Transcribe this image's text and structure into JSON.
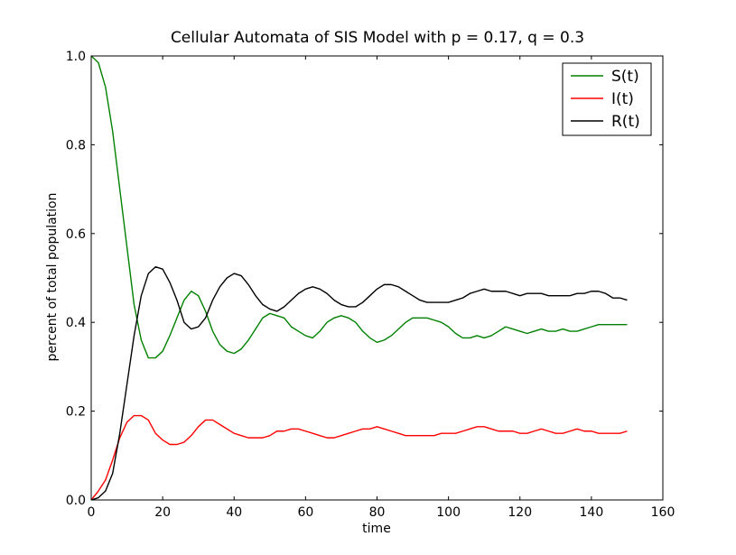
{
  "chart_data": {
    "type": "line",
    "title": "Cellular Automata of SIS Model with p = 0.17, q = 0.3",
    "xlabel": "time",
    "ylabel": "percent of total population",
    "xlim": [
      0,
      160
    ],
    "ylim": [
      0.0,
      1.0
    ],
    "xticks": [
      0,
      20,
      40,
      60,
      80,
      100,
      120,
      140,
      160
    ],
    "xtick_labels": [
      "0",
      "20",
      "40",
      "60",
      "80",
      "100",
      "120",
      "140",
      "160"
    ],
    "yticks": [
      0.0,
      0.2,
      0.4,
      0.6,
      0.8,
      1.0
    ],
    "ytick_labels": [
      "0.0",
      "0.2",
      "0.4",
      "0.6",
      "0.8",
      "1.0"
    ],
    "grid": false,
    "legend": {
      "location": "top-right",
      "entries": [
        "S(t)",
        "I(t)",
        "R(t)"
      ]
    },
    "series": [
      {
        "name": "S(t)",
        "color": "#008000",
        "x": [
          0,
          2,
          4,
          6,
          8,
          10,
          12,
          14,
          16,
          18,
          20,
          22,
          24,
          26,
          28,
          30,
          32,
          34,
          36,
          38,
          40,
          42,
          44,
          46,
          48,
          50,
          52,
          54,
          56,
          58,
          60,
          62,
          64,
          66,
          68,
          70,
          72,
          74,
          76,
          78,
          80,
          82,
          84,
          86,
          88,
          90,
          92,
          94,
          96,
          98,
          100,
          102,
          104,
          106,
          108,
          110,
          112,
          114,
          116,
          118,
          120,
          122,
          124,
          126,
          128,
          130,
          132,
          134,
          136,
          138,
          140,
          142,
          144,
          146,
          148,
          150
        ],
        "y": [
          1.0,
          0.985,
          0.93,
          0.83,
          0.7,
          0.57,
          0.44,
          0.36,
          0.32,
          0.32,
          0.335,
          0.37,
          0.41,
          0.45,
          0.47,
          0.46,
          0.425,
          0.38,
          0.35,
          0.335,
          0.33,
          0.34,
          0.36,
          0.385,
          0.41,
          0.42,
          0.415,
          0.41,
          0.39,
          0.38,
          0.37,
          0.365,
          0.38,
          0.4,
          0.41,
          0.415,
          0.41,
          0.4,
          0.38,
          0.365,
          0.355,
          0.36,
          0.37,
          0.385,
          0.4,
          0.41,
          0.41,
          0.41,
          0.405,
          0.4,
          0.39,
          0.375,
          0.365,
          0.365,
          0.37,
          0.365,
          0.37,
          0.38,
          0.39,
          0.385,
          0.38,
          0.375,
          0.38,
          0.385,
          0.38,
          0.38,
          0.385,
          0.38,
          0.38,
          0.385,
          0.39,
          0.395,
          0.395,
          0.395,
          0.395,
          0.395
        ]
      },
      {
        "name": "I(t)",
        "color": "#ff0000",
        "x": [
          0,
          2,
          4,
          6,
          8,
          10,
          12,
          14,
          16,
          18,
          20,
          22,
          24,
          26,
          28,
          30,
          32,
          34,
          36,
          38,
          40,
          42,
          44,
          46,
          48,
          50,
          52,
          54,
          56,
          58,
          60,
          62,
          64,
          66,
          68,
          70,
          72,
          74,
          76,
          78,
          80,
          82,
          84,
          86,
          88,
          90,
          92,
          94,
          96,
          98,
          100,
          102,
          104,
          106,
          108,
          110,
          112,
          114,
          116,
          118,
          120,
          122,
          124,
          126,
          128,
          130,
          132,
          134,
          136,
          138,
          140,
          142,
          144,
          146,
          148,
          150
        ],
        "y": [
          0.0,
          0.02,
          0.045,
          0.09,
          0.14,
          0.175,
          0.19,
          0.19,
          0.18,
          0.15,
          0.135,
          0.125,
          0.125,
          0.13,
          0.145,
          0.165,
          0.18,
          0.18,
          0.17,
          0.16,
          0.15,
          0.145,
          0.14,
          0.14,
          0.14,
          0.145,
          0.155,
          0.155,
          0.16,
          0.16,
          0.155,
          0.15,
          0.145,
          0.14,
          0.14,
          0.145,
          0.15,
          0.155,
          0.16,
          0.16,
          0.165,
          0.16,
          0.155,
          0.15,
          0.145,
          0.145,
          0.145,
          0.145,
          0.145,
          0.15,
          0.15,
          0.15,
          0.155,
          0.16,
          0.165,
          0.165,
          0.16,
          0.155,
          0.155,
          0.155,
          0.15,
          0.15,
          0.155,
          0.16,
          0.155,
          0.15,
          0.15,
          0.155,
          0.16,
          0.155,
          0.155,
          0.15,
          0.15,
          0.15,
          0.15,
          0.155
        ]
      },
      {
        "name": "R(t)",
        "color": "#000000",
        "x": [
          0,
          2,
          4,
          6,
          8,
          10,
          12,
          14,
          16,
          18,
          20,
          22,
          24,
          26,
          28,
          30,
          32,
          34,
          36,
          38,
          40,
          42,
          44,
          46,
          48,
          50,
          52,
          54,
          56,
          58,
          60,
          62,
          64,
          66,
          68,
          70,
          72,
          74,
          76,
          78,
          80,
          82,
          84,
          86,
          88,
          90,
          92,
          94,
          96,
          98,
          100,
          102,
          104,
          106,
          108,
          110,
          112,
          114,
          116,
          118,
          120,
          122,
          124,
          126,
          128,
          130,
          132,
          134,
          136,
          138,
          140,
          142,
          144,
          146,
          148,
          150
        ],
        "y": [
          0.0,
          0.005,
          0.02,
          0.06,
          0.15,
          0.26,
          0.37,
          0.46,
          0.51,
          0.525,
          0.52,
          0.49,
          0.45,
          0.4,
          0.385,
          0.39,
          0.41,
          0.45,
          0.48,
          0.5,
          0.51,
          0.505,
          0.485,
          0.46,
          0.44,
          0.43,
          0.425,
          0.435,
          0.45,
          0.465,
          0.475,
          0.48,
          0.475,
          0.465,
          0.45,
          0.44,
          0.435,
          0.435,
          0.445,
          0.46,
          0.475,
          0.485,
          0.485,
          0.48,
          0.47,
          0.46,
          0.45,
          0.445,
          0.445,
          0.445,
          0.445,
          0.45,
          0.455,
          0.465,
          0.47,
          0.475,
          0.47,
          0.47,
          0.47,
          0.465,
          0.46,
          0.465,
          0.465,
          0.465,
          0.46,
          0.46,
          0.46,
          0.46,
          0.465,
          0.465,
          0.47,
          0.47,
          0.465,
          0.455,
          0.455,
          0.45
        ]
      }
    ]
  }
}
